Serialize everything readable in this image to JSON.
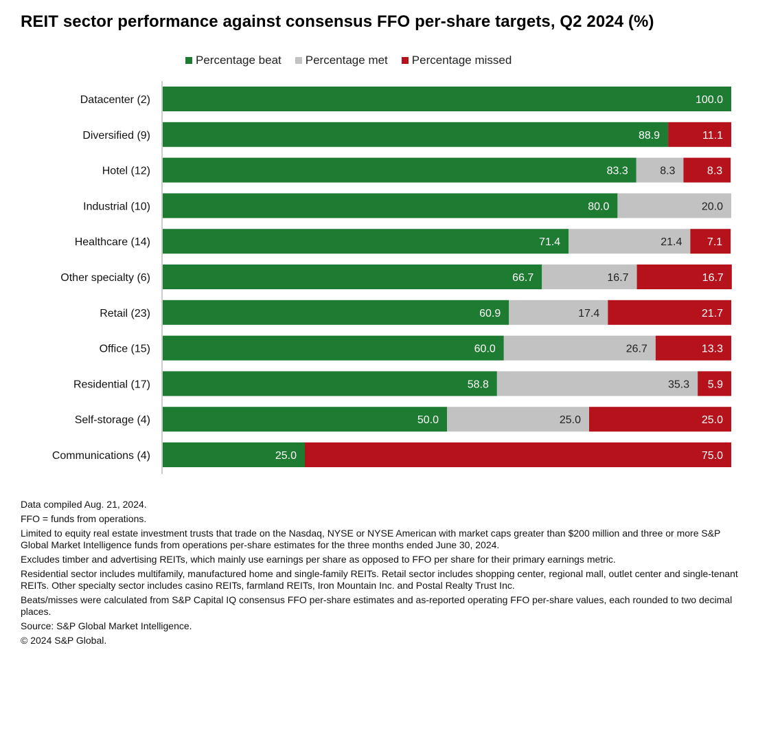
{
  "title": "REIT sector performance against consensus FFO per-share targets, Q2 2024 (%)",
  "legend": {
    "beat": "Percentage beat",
    "met": "Percentage met",
    "missed": "Percentage missed"
  },
  "colors": {
    "beat": "#1e7b32",
    "met": "#c2c2c2",
    "missed": "#b5121b"
  },
  "chart_data": {
    "type": "bar",
    "orientation": "horizontal",
    "stacked": true,
    "categories": [
      "Datacenter (2)",
      "Diversified (9)",
      "Hotel (12)",
      "Industrial (10)",
      "Healthcare (14)",
      "Other specialty (6)",
      "Retail (23)",
      "Office (15)",
      "Residential (17)",
      "Self-storage (4)",
      "Communications (4)"
    ],
    "series": [
      {
        "name": "Percentage beat",
        "values": [
          100.0,
          88.9,
          83.3,
          80.0,
          71.4,
          66.7,
          60.9,
          60.0,
          58.8,
          50.0,
          25.0
        ]
      },
      {
        "name": "Percentage met",
        "values": [
          0,
          0,
          8.3,
          20.0,
          21.4,
          16.7,
          17.4,
          26.7,
          35.3,
          25.0,
          0
        ]
      },
      {
        "name": "Percentage missed",
        "values": [
          0,
          11.1,
          8.3,
          0,
          7.1,
          16.7,
          21.7,
          13.3,
          5.9,
          25.0,
          75.0
        ]
      }
    ],
    "labels": [
      [
        "100.0",
        "",
        ""
      ],
      [
        "88.9",
        "",
        "11.1"
      ],
      [
        "83.3",
        "8.3",
        "8.3"
      ],
      [
        "80.0",
        "20.0",
        ""
      ],
      [
        "71.4",
        "21.4",
        "7.1"
      ],
      [
        "66.7",
        "16.7",
        "16.7"
      ],
      [
        "60.9",
        "17.4",
        "21.7"
      ],
      [
        "60.0",
        "26.7",
        "13.3"
      ],
      [
        "58.8",
        "35.3",
        "5.9"
      ],
      [
        "50.0",
        "25.0",
        "25.0"
      ],
      [
        "25.0",
        "",
        "75.0"
      ]
    ],
    "xlim": [
      0,
      100
    ],
    "legend_position": "top"
  },
  "notes": [
    "Data compiled Aug. 21, 2024.",
    "FFO = funds from operations.",
    "Limited to equity real estate investment trusts that trade on the Nasdaq, NYSE or NYSE American with market caps greater than $200 million and three or more S&P Global Market Intelligence funds from operations per-share estimates for the three months ended June 30, 2024.",
    "Excludes timber and advertising REITs, which mainly use earnings per share as opposed to FFO per share for their primary earnings metric.",
    "Residential sector includes multifamily, manufactured home and single-family REITs. Retail sector includes shopping center, regional mall, outlet center and single-tenant REITs. Other specialty sector includes casino REITs, farmland REITs, Iron Mountain Inc. and Postal Realty Trust Inc.",
    "Beats/misses were calculated from S&P Capital IQ consensus FFO per-share estimates and as-reported operating FFO per-share values, each rounded to two decimal places.",
    "Source: S&P Global Market Intelligence.",
    "© 2024 S&P Global."
  ]
}
